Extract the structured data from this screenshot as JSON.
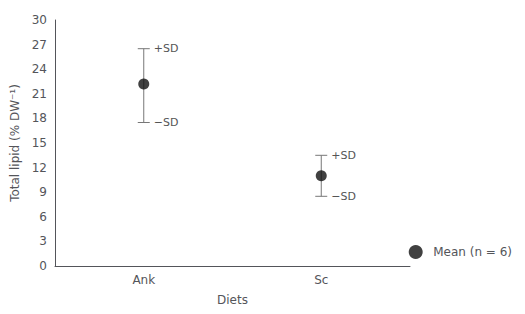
{
  "chart_data": {
    "type": "scatter",
    "xlabel": "Diets",
    "ylabel": "Total lipid (% DW⁻¹)",
    "categories": [
      "Ank",
      "Sc"
    ],
    "series": [
      {
        "name": "Mean (n = 6)",
        "color": "#111111",
        "values": [
          22.2,
          11.0
        ],
        "plus_sd": [
          26.5,
          13.5
        ],
        "minus_sd": [
          17.5,
          8.5
        ],
        "plus_sd_label": "+SD",
        "minus_sd_label": "−SD",
        "error_bar_color": "#777777"
      }
    ],
    "ylim": [
      0,
      30
    ],
    "yticks": [
      0,
      3,
      6,
      9,
      12,
      15,
      18,
      21,
      24,
      27,
      30
    ],
    "grid": false,
    "legend": "lower right"
  }
}
